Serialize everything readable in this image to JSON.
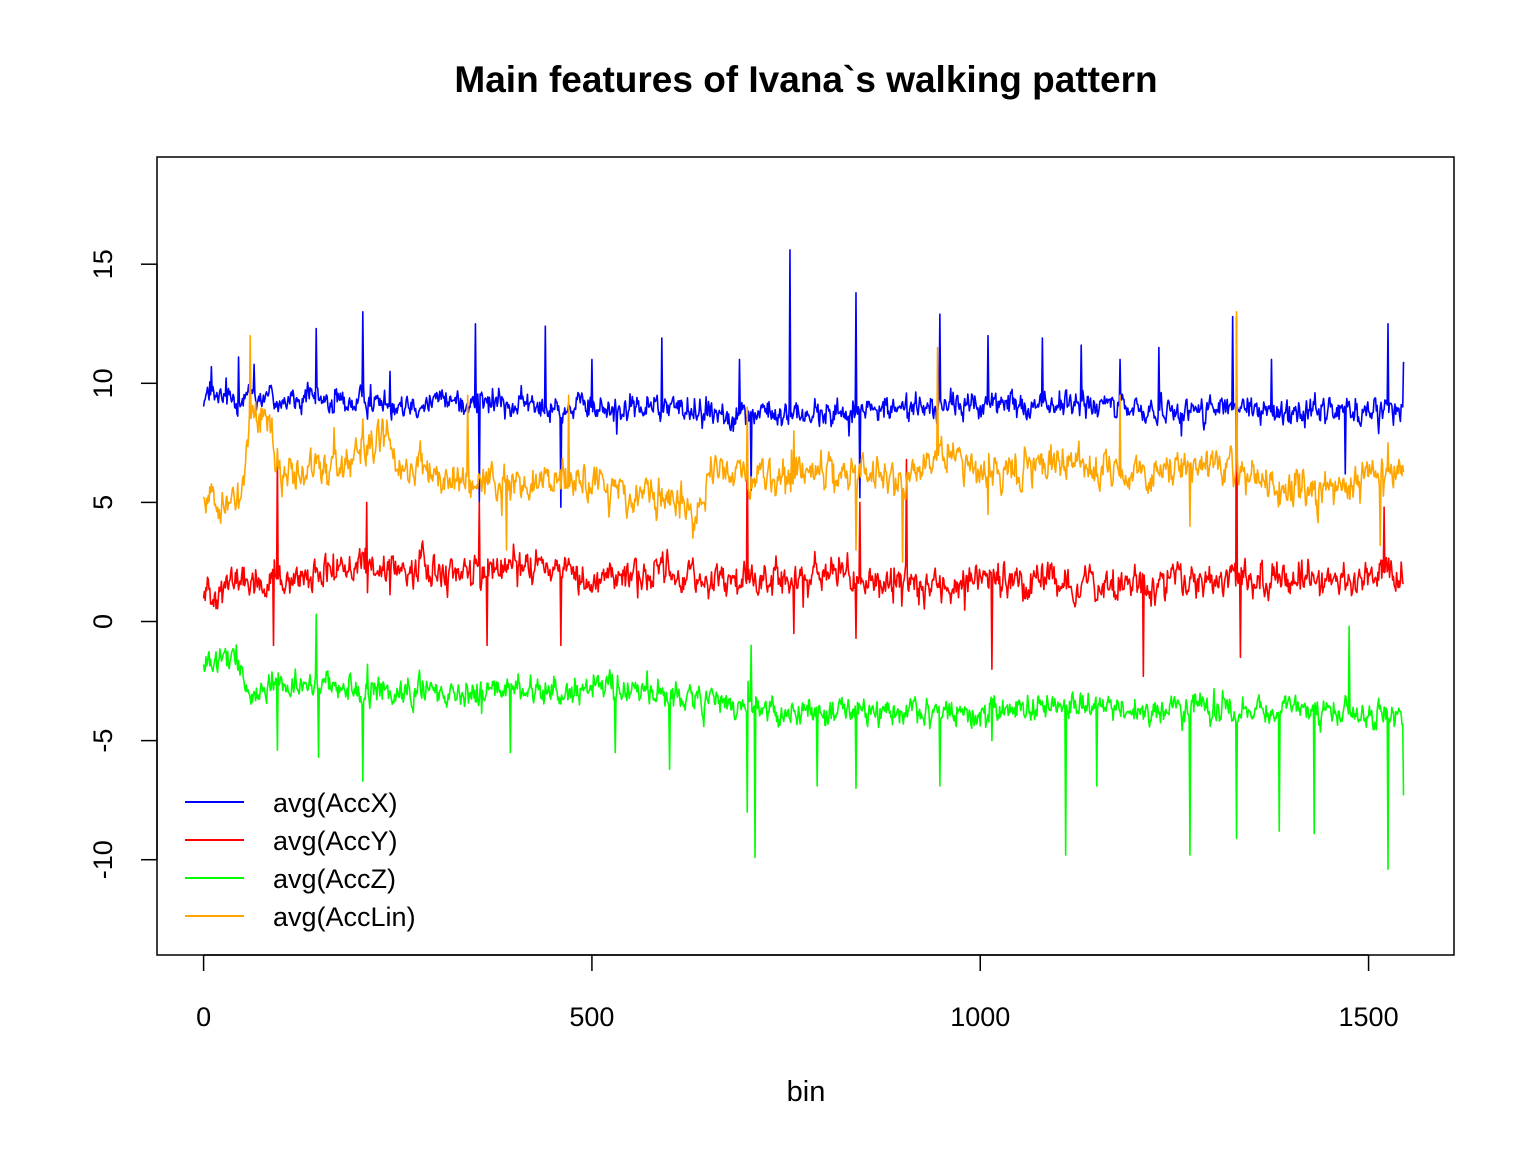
{
  "chart_data": {
    "type": "line",
    "title": "Main features of Ivana`s walking pattern",
    "xlabel": "bin",
    "ylabel": "",
    "xlim": [
      -60,
      1610
    ],
    "ylim": [
      -14,
      19.5
    ],
    "x_ticks": [
      0,
      500,
      1000,
      1500
    ],
    "y_ticks": [
      -10,
      -5,
      0,
      5,
      10,
      15
    ],
    "x_tick_labels": [
      "0",
      "500",
      "1000",
      "1500"
    ],
    "y_tick_labels": [
      "-10",
      "-5",
      "0",
      "5",
      "10",
      "15"
    ],
    "grid": false,
    "legend_position": "bottom-left",
    "n_points": 1546,
    "series": [
      {
        "name": "avg(AccX)",
        "color": "#0000ff",
        "mean": 9.1,
        "noise": 0.45,
        "knots": [
          [
            0,
            9.5
          ],
          [
            20,
            9.3
          ],
          [
            60,
            9.6
          ],
          [
            100,
            9.3
          ],
          [
            200,
            9.2
          ],
          [
            300,
            9.3
          ],
          [
            400,
            9.1
          ],
          [
            500,
            8.9
          ],
          [
            600,
            9.0
          ],
          [
            700,
            8.7
          ],
          [
            800,
            8.7
          ],
          [
            900,
            9.0
          ],
          [
            1000,
            9.1
          ],
          [
            1100,
            9.1
          ],
          [
            1200,
            8.9
          ],
          [
            1300,
            8.9
          ],
          [
            1400,
            8.8
          ],
          [
            1500,
            8.9
          ],
          [
            1545,
            9.0
          ]
        ],
        "spikes": [
          [
            10,
            10.7
          ],
          [
            45,
            11.1
          ],
          [
            65,
            10.8
          ],
          [
            145,
            12.3
          ],
          [
            205,
            13.0
          ],
          [
            240,
            10.5
          ],
          [
            350,
            12.5
          ],
          [
            355,
            5.0
          ],
          [
            440,
            12.4
          ],
          [
            460,
            4.8
          ],
          [
            500,
            11.0
          ],
          [
            590,
            11.9
          ],
          [
            690,
            11.0
          ],
          [
            705,
            5.5
          ],
          [
            755,
            15.6
          ],
          [
            840,
            13.8
          ],
          [
            845,
            5.2
          ],
          [
            948,
            12.9
          ],
          [
            1010,
            12.0
          ],
          [
            1080,
            11.9
          ],
          [
            1130,
            11.6
          ],
          [
            1180,
            11.0
          ],
          [
            1230,
            11.5
          ],
          [
            1325,
            12.8
          ],
          [
            1330,
            3.5
          ],
          [
            1375,
            11.0
          ],
          [
            1470,
            6.2
          ],
          [
            1525,
            12.5
          ],
          [
            1545,
            10.9
          ]
        ]
      },
      {
        "name": "avg(AccY)",
        "color": "#ff0000",
        "mean": 1.9,
        "noise": 0.55,
        "knots": [
          [
            0,
            1.2
          ],
          [
            50,
            1.7
          ],
          [
            100,
            1.4
          ],
          [
            200,
            2.3
          ],
          [
            300,
            2.1
          ],
          [
            400,
            2.2
          ],
          [
            450,
            2.4
          ],
          [
            500,
            1.9
          ],
          [
            600,
            2.0
          ],
          [
            700,
            1.6
          ],
          [
            800,
            1.9
          ],
          [
            900,
            1.5
          ],
          [
            950,
            1.6
          ],
          [
            1000,
            1.8
          ],
          [
            1100,
            1.6
          ],
          [
            1200,
            1.4
          ],
          [
            1300,
            1.8
          ],
          [
            1400,
            1.7
          ],
          [
            1500,
            2.0
          ],
          [
            1545,
            2.2
          ]
        ],
        "spikes": [
          [
            90,
            -1.0
          ],
          [
            95,
            7.0
          ],
          [
            210,
            5.0
          ],
          [
            355,
            5.0
          ],
          [
            365,
            -1.0
          ],
          [
            460,
            -1.0
          ],
          [
            700,
            8.0
          ],
          [
            760,
            -0.5
          ],
          [
            840,
            -0.7
          ],
          [
            845,
            5.0
          ],
          [
            905,
            6.8
          ],
          [
            1015,
            -2.0
          ],
          [
            1210,
            -2.3
          ],
          [
            1330,
            12.8
          ],
          [
            1335,
            -1.5
          ],
          [
            1520,
            4.8
          ]
        ]
      },
      {
        "name": "avg(AccZ)",
        "color": "#00ff00",
        "mean": -3.3,
        "noise": 0.45,
        "knots": [
          [
            0,
            -1.9
          ],
          [
            40,
            -1.6
          ],
          [
            60,
            -3.1
          ],
          [
            100,
            -2.5
          ],
          [
            200,
            -2.9
          ],
          [
            300,
            -3.0
          ],
          [
            400,
            -2.9
          ],
          [
            500,
            -2.8
          ],
          [
            600,
            -3.1
          ],
          [
            700,
            -3.6
          ],
          [
            800,
            -3.8
          ],
          [
            900,
            -3.8
          ],
          [
            1000,
            -3.8
          ],
          [
            1100,
            -3.6
          ],
          [
            1200,
            -3.7
          ],
          [
            1300,
            -3.7
          ],
          [
            1400,
            -3.7
          ],
          [
            1500,
            -3.9
          ],
          [
            1545,
            -4.1
          ]
        ],
        "spikes": [
          [
            95,
            -5.4
          ],
          [
            145,
            0.3
          ],
          [
            148,
            -5.7
          ],
          [
            205,
            -6.7
          ],
          [
            395,
            -5.5
          ],
          [
            530,
            -5.5
          ],
          [
            600,
            -6.2
          ],
          [
            700,
            -8.0
          ],
          [
            705,
            -1.0
          ],
          [
            710,
            -9.9
          ],
          [
            790,
            -6.9
          ],
          [
            840,
            -7.0
          ],
          [
            948,
            -6.9
          ],
          [
            1015,
            -5.0
          ],
          [
            1110,
            -9.8
          ],
          [
            1150,
            -6.9
          ],
          [
            1270,
            -9.8
          ],
          [
            1330,
            -9.1
          ],
          [
            1385,
            -8.8
          ],
          [
            1430,
            -8.9
          ],
          [
            1475,
            -0.2
          ],
          [
            1525,
            -10.4
          ],
          [
            1545,
            -7.3
          ]
        ]
      },
      {
        "name": "avg(AccLin)",
        "color": "#ffa500",
        "mean": 6.2,
        "noise": 0.6,
        "knots": [
          [
            0,
            5.4
          ],
          [
            30,
            5.0
          ],
          [
            50,
            5.2
          ],
          [
            60,
            8.5
          ],
          [
            80,
            8.8
          ],
          [
            100,
            6.3
          ],
          [
            150,
            6.4
          ],
          [
            200,
            6.9
          ],
          [
            230,
            7.8
          ],
          [
            260,
            6.4
          ],
          [
            300,
            6.0
          ],
          [
            400,
            5.8
          ],
          [
            450,
            6.1
          ],
          [
            500,
            6.0
          ],
          [
            550,
            5.3
          ],
          [
            600,
            5.4
          ],
          [
            630,
            4.3
          ],
          [
            660,
            6.6
          ],
          [
            700,
            6.0
          ],
          [
            800,
            6.3
          ],
          [
            850,
            6.4
          ],
          [
            900,
            5.9
          ],
          [
            950,
            7.0
          ],
          [
            1000,
            6.4
          ],
          [
            1100,
            6.6
          ],
          [
            1200,
            6.1
          ],
          [
            1300,
            6.7
          ],
          [
            1400,
            5.5
          ],
          [
            1450,
            5.5
          ],
          [
            1500,
            6.0
          ],
          [
            1545,
            6.4
          ]
        ],
        "spikes": [
          [
            60,
            12.0
          ],
          [
            205,
            8.5
          ],
          [
            340,
            9.5
          ],
          [
            390,
            3.0
          ],
          [
            470,
            9.5
          ],
          [
            630,
            3.5
          ],
          [
            700,
            9.0
          ],
          [
            760,
            8.0
          ],
          [
            840,
            3.0
          ],
          [
            900,
            2.5
          ],
          [
            945,
            11.5
          ],
          [
            1010,
            4.5
          ],
          [
            1180,
            9.5
          ],
          [
            1270,
            4.0
          ],
          [
            1330,
            13.0
          ],
          [
            1440,
            5.0
          ],
          [
            1515,
            3.2
          ],
          [
            1525,
            7.5
          ]
        ]
      }
    ]
  }
}
